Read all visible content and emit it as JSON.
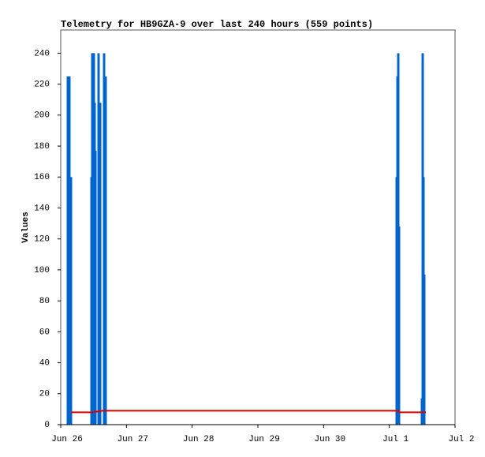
{
  "chart_data": {
    "type": "bar",
    "title": "Telemetry for HB9GZA-9 over last 240 hours (559 points)",
    "ylabel": "Values",
    "xlim": [
      0,
      6
    ],
    "xticks": [
      {
        "value": 0,
        "label": "Jun 26"
      },
      {
        "value": 1,
        "label": "Jun 27"
      },
      {
        "value": 2,
        "label": "Jun 28"
      },
      {
        "value": 3,
        "label": "Jun 29"
      },
      {
        "value": 4,
        "label": "Jun 30"
      },
      {
        "value": 5,
        "label": "Jul 1"
      },
      {
        "value": 6,
        "label": "Jul 2"
      }
    ],
    "ylim": [
      0,
      255
    ],
    "yticks": [
      0,
      20,
      40,
      60,
      80,
      100,
      120,
      140,
      160,
      180,
      200,
      220,
      240
    ],
    "series": [
      {
        "type": "bar",
        "color": "#0066cc",
        "x": [
          0.108,
          0.12,
          0.132,
          0.156,
          0.468,
          0.48,
          0.492,
          0.504,
          0.516,
          0.528,
          0.576,
          0.6,
          0.66,
          0.684,
          5.112,
          5.124,
          5.136,
          5.148,
          5.496,
          5.508,
          5.52,
          5.532
        ],
        "values": [
          225,
          225,
          225,
          160,
          160,
          240,
          240,
          240,
          208,
          177,
          240,
          208,
          240,
          225,
          160,
          225,
          240,
          128,
          17,
          240,
          160,
          97
        ]
      },
      {
        "type": "line",
        "color": "#dd0000",
        "x": [
          0.156,
          0.48,
          0.636,
          5.136,
          5.148,
          5.556
        ],
        "values": [
          8,
          8,
          9,
          9,
          8,
          8
        ]
      }
    ]
  }
}
